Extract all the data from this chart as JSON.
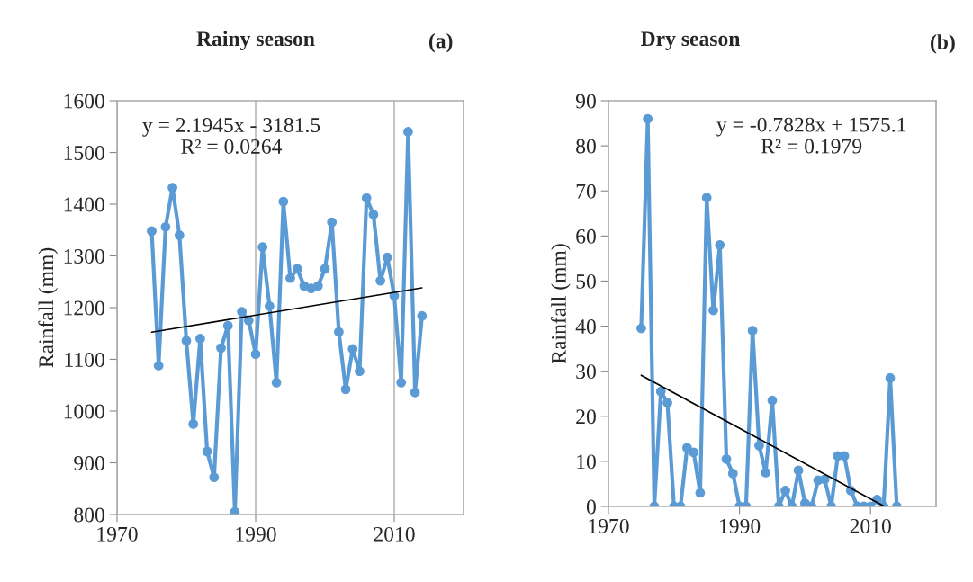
{
  "chart_data": [
    {
      "type": "line",
      "title": "Rainy season",
      "ylabel": "Rainfall (mm)",
      "annotations": [
        "(a)",
        "y = 2.1945x - 3181.5\nR² = 0.0264"
      ],
      "xlim": [
        1970,
        2020
      ],
      "xticks": [
        1970,
        1990,
        2010
      ],
      "ylim": [
        800,
        1600
      ],
      "yticks": [
        800,
        900,
        1000,
        1100,
        1200,
        1300,
        1400,
        1500,
        1600
      ],
      "grid": "x",
      "legend": false,
      "x": [
        1975,
        1976,
        1977,
        1978,
        1979,
        1980,
        1981,
        1982,
        1983,
        1984,
        1985,
        1986,
        1987,
        1988,
        1989,
        1990,
        1991,
        1992,
        1993,
        1994,
        1995,
        1996,
        1997,
        1998,
        1999,
        2000,
        2001,
        2002,
        2003,
        2004,
        2005,
        2006,
        2007,
        2008,
        2009,
        2010,
        2011,
        2012,
        2013,
        2014
      ],
      "series": [
        {
          "color": "#5b9bd5",
          "marker": "circle",
          "values": [
            1348,
            1088,
            1356,
            1432,
            1340,
            1136,
            975,
            1140,
            922,
            872,
            1122,
            1165,
            805,
            1192,
            1175,
            1110,
            1317,
            1203,
            1055,
            1405,
            1257,
            1275,
            1242,
            1237,
            1242,
            1275,
            1365,
            1153,
            1042,
            1120,
            1077,
            1412,
            1380,
            1252,
            1297,
            1223,
            1055,
            1540,
            1036,
            1184
          ]
        },
        {
          "type": "line",
          "color": "#000000",
          "marker": "none",
          "x": [
            1975,
            2014
          ],
          "values": [
            1152.6,
            1238.2
          ]
        }
      ]
    },
    {
      "type": "line",
      "title": "Dry season",
      "ylabel": "Rainfall (mm)",
      "annotations": [
        "(b)",
        "y = -0.7828x + 1575.1\nR² = 0.1979"
      ],
      "xlim": [
        1970,
        2020
      ],
      "xticks": [
        1970,
        1990,
        2010
      ],
      "ylim": [
        0,
        90
      ],
      "yticks": [
        0,
        10,
        20,
        30,
        40,
        50,
        60,
        70,
        80,
        90
      ],
      "grid": false,
      "legend": false,
      "x": [
        1975,
        1976,
        1977,
        1978,
        1979,
        1980,
        1981,
        1982,
        1983,
        1984,
        1985,
        1986,
        1987,
        1988,
        1989,
        1990,
        1991,
        1992,
        1993,
        1994,
        1995,
        1996,
        1997,
        1998,
        1999,
        2000,
        2001,
        2002,
        2003,
        2004,
        2005,
        2006,
        2007,
        2008,
        2009,
        2010,
        2011,
        2012,
        2013,
        2014
      ],
      "series": [
        {
          "color": "#5b9bd5",
          "marker": "circle",
          "values": [
            39.5,
            86,
            0,
            25.5,
            23,
            0,
            0,
            13,
            12,
            3,
            68.5,
            43.5,
            58,
            10.5,
            7.3,
            0,
            0,
            39,
            13.5,
            7.5,
            23.5,
            0,
            3.5,
            0,
            8,
            0.7,
            0,
            5.8,
            6,
            0,
            11.2,
            11.2,
            3.5,
            0,
            0,
            0,
            1.5,
            0,
            28.5,
            0
          ]
        },
        {
          "type": "line",
          "color": "#000000",
          "marker": "none",
          "x": [
            1975,
            2012
          ],
          "values": [
            29.1,
            0.1
          ]
        }
      ]
    }
  ]
}
